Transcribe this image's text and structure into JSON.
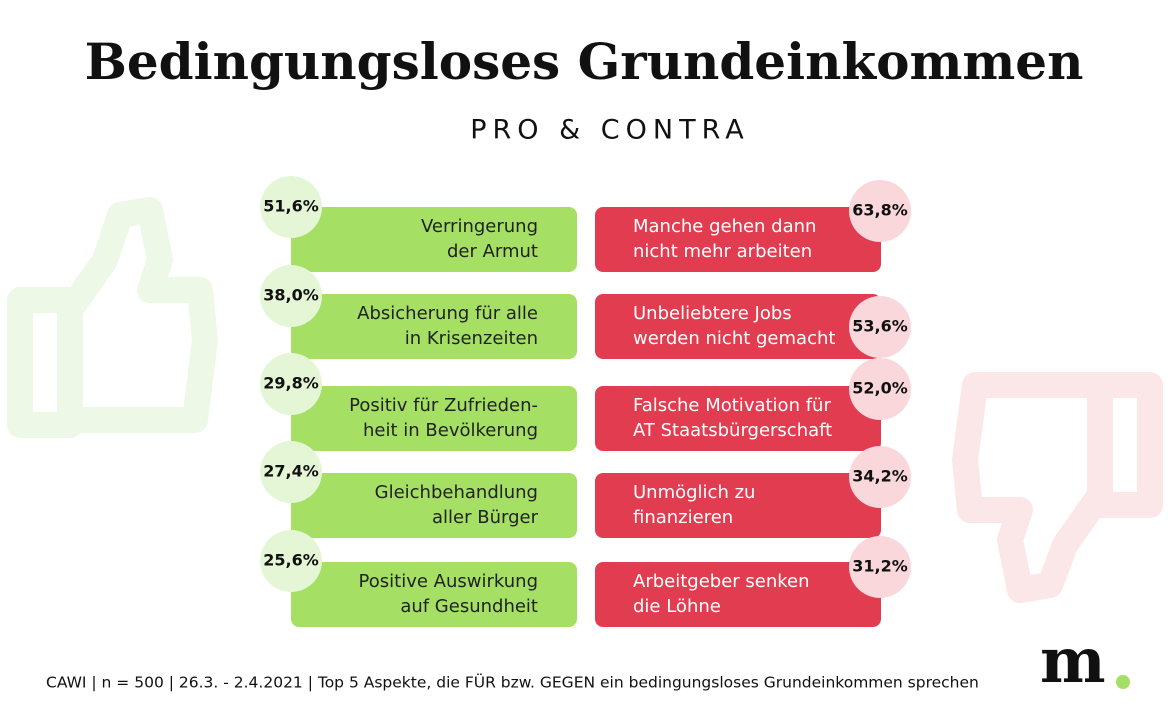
{
  "header": {
    "title": "Bedingungsloses Grundeinkommen",
    "subtitle": "PRO & CONTRA"
  },
  "pro": [
    {
      "lines": [
        "Verringerung",
        "der Armut"
      ],
      "value": "51,6%"
    },
    {
      "lines": [
        "Absicherung für alle",
        "in Krisenzeiten"
      ],
      "value": "38,0%"
    },
    {
      "lines": [
        "Positiv für Zufrieden-",
        "heit in Bevölkerung"
      ],
      "value": "29,8%"
    },
    {
      "lines": [
        "Gleichbehandlung",
        "aller Bürger"
      ],
      "value": "27,4%"
    },
    {
      "lines": [
        "Positive Auswirkung",
        "auf Gesundheit"
      ],
      "value": "25,6%"
    }
  ],
  "contra": [
    {
      "lines": [
        "Manche gehen dann",
        "nicht mehr arbeiten"
      ],
      "value": "63,8%"
    },
    {
      "lines": [
        "Unbeliebtere Jobs",
        "werden nicht gemacht"
      ],
      "value": "53,6%"
    },
    {
      "lines": [
        "Falsche Motivation für",
        "AT Staatsbürgerschaft"
      ],
      "value": "52,0%"
    },
    {
      "lines": [
        "Unmöglich zu",
        "finanzieren"
      ],
      "value": "34,2%"
    },
    {
      "lines": [
        "Arbeitgeber senken",
        "die Löhne"
      ],
      "value": "31,2%"
    }
  ],
  "footer": {
    "note": "CAWI | n = 500 | 26.3. - 2.4.2021 | Top 5 Aspekte, die FÜR bzw. GEGEN ein bedingungsloses Grundeinkommen sprechen",
    "logo": "m"
  }
}
